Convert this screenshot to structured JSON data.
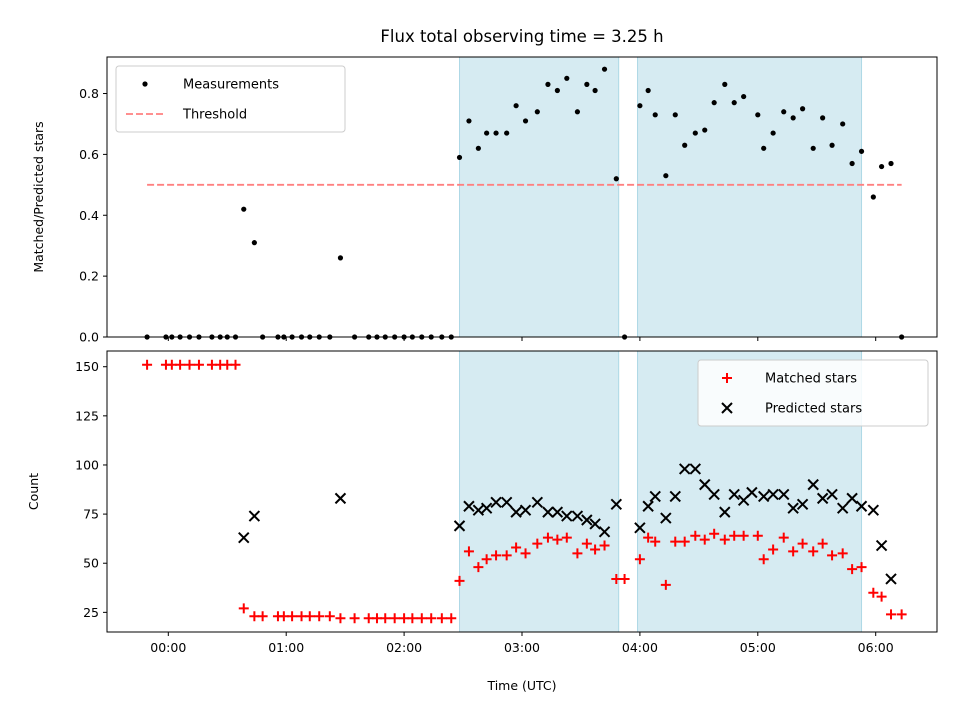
{
  "chart_data": {
    "type": "scatter",
    "title": "Flux total observing time = 3.25 h",
    "xlabel": "Time (UTC)",
    "x_units": "hours",
    "xlim": [
      -0.52,
      6.52
    ],
    "xticks": [
      {
        "value": 0,
        "label": "00:00"
      },
      {
        "value": 1,
        "label": "01:00"
      },
      {
        "value": 2,
        "label": "02:00"
      },
      {
        "value": 3,
        "label": "03:00"
      },
      {
        "value": 4,
        "label": "04:00"
      },
      {
        "value": 5,
        "label": "05:00"
      },
      {
        "value": 6,
        "label": "06:00"
      }
    ],
    "shaded_intervals": [
      {
        "start": 2.47,
        "end": 3.82
      },
      {
        "start": 3.98,
        "end": 5.88
      }
    ],
    "shade_color": "#add8e6",
    "panels": [
      {
        "id": "ratio",
        "ylabel": "Matched/Predicted stars",
        "ylim": [
          0,
          0.92
        ],
        "yticks": [
          {
            "value": 0,
            "label": "0.0"
          },
          {
            "value": 0.2,
            "label": "0.2"
          },
          {
            "value": 0.4,
            "label": "0.4"
          },
          {
            "value": 0.6,
            "label": "0.6"
          },
          {
            "value": 0.8,
            "label": "0.8"
          }
        ],
        "legend": {
          "location": "upper-left",
          "entries": [
            "Measurements",
            "Threshold"
          ]
        },
        "threshold": {
          "name": "Threshold",
          "y": 0.5,
          "x_start": -0.18,
          "x_end": 6.22,
          "color": "#ff8080"
        },
        "series": [
          {
            "name": "Measurements",
            "marker": "dot",
            "color": "#000000",
            "x": [
              -0.18,
              -0.02,
              0.03,
              0.1,
              0.18,
              0.26,
              0.37,
              0.44,
              0.5,
              0.57,
              0.64,
              0.73,
              0.8,
              0.93,
              0.98,
              1.05,
              1.13,
              1.2,
              1.28,
              1.37,
              1.46,
              1.58,
              1.7,
              1.77,
              1.84,
              1.92,
              2.0,
              2.07,
              2.15,
              2.23,
              2.32,
              2.4,
              2.47,
              2.55,
              2.63,
              2.7,
              2.78,
              2.87,
              2.95,
              3.03,
              3.13,
              3.22,
              3.3,
              3.38,
              3.47,
              3.55,
              3.62,
              3.7,
              3.8,
              3.87,
              4.0,
              4.07,
              4.13,
              4.22,
              4.3,
              4.38,
              4.47,
              4.55,
              4.63,
              4.72,
              4.8,
              4.88,
              5.0,
              5.05,
              5.13,
              5.22,
              5.3,
              5.38,
              5.47,
              5.55,
              5.63,
              5.72,
              5.8,
              5.88,
              5.98,
              6.05,
              6.13,
              6.22
            ],
            "y": [
              0.0,
              0.0,
              0.0,
              0.0,
              0.0,
              0.0,
              0.0,
              0.0,
              0.0,
              0.0,
              0.42,
              0.31,
              0.0,
              0.0,
              0.0,
              0.0,
              0.0,
              0.0,
              0.0,
              0.0,
              0.26,
              0.0,
              0.0,
              0.0,
              0.0,
              0.0,
              0.0,
              0.0,
              0.0,
              0.0,
              0.0,
              0.0,
              0.59,
              0.71,
              0.62,
              0.67,
              0.67,
              0.67,
              0.76,
              0.71,
              0.74,
              0.83,
              0.81,
              0.85,
              0.74,
              0.83,
              0.81,
              0.88,
              0.52,
              0.0,
              0.76,
              0.81,
              0.73,
              0.53,
              0.73,
              0.63,
              0.67,
              0.68,
              0.77,
              0.83,
              0.77,
              0.79,
              0.73,
              0.62,
              0.67,
              0.74,
              0.72,
              0.75,
              0.62,
              0.72,
              0.63,
              0.7,
              0.57,
              0.61,
              0.46,
              0.56,
              0.57,
              0.0
            ]
          }
        ]
      },
      {
        "id": "counts",
        "ylabel": "Count",
        "ylim": [
          15,
          158
        ],
        "yticks": [
          {
            "value": 25,
            "label": "25"
          },
          {
            "value": 50,
            "label": "50"
          },
          {
            "value": 75,
            "label": "75"
          },
          {
            "value": 100,
            "label": "100"
          },
          {
            "value": 125,
            "label": "125"
          },
          {
            "value": 150,
            "label": "150"
          }
        ],
        "legend": {
          "location": "upper-right",
          "entries": [
            "Matched stars",
            "Predicted stars"
          ]
        },
        "series": [
          {
            "name": "Matched stars",
            "marker": "plus",
            "color": "#ff0000",
            "x": [
              -0.18,
              -0.02,
              0.03,
              0.1,
              0.18,
              0.26,
              0.37,
              0.44,
              0.5,
              0.57,
              0.64,
              0.73,
              0.8,
              0.93,
              0.98,
              1.05,
              1.13,
              1.2,
              1.28,
              1.37,
              1.46,
              1.58,
              1.7,
              1.77,
              1.84,
              1.92,
              2.0,
              2.07,
              2.15,
              2.23,
              2.32,
              2.4,
              2.47,
              2.55,
              2.63,
              2.7,
              2.78,
              2.87,
              2.95,
              3.03,
              3.13,
              3.22,
              3.3,
              3.38,
              3.47,
              3.55,
              3.62,
              3.7,
              3.8,
              3.87,
              4.0,
              4.07,
              4.13,
              4.22,
              4.3,
              4.38,
              4.47,
              4.55,
              4.63,
              4.72,
              4.8,
              4.88,
              5.0,
              5.05,
              5.13,
              5.22,
              5.3,
              5.38,
              5.47,
              5.55,
              5.63,
              5.72,
              5.8,
              5.88,
              5.98,
              6.05,
              6.13,
              6.22
            ],
            "y": [
              151,
              151,
              151,
              151,
              151,
              151,
              151,
              151,
              151,
              151,
              27,
              23,
              23,
              23,
              23,
              23,
              23,
              23,
              23,
              23,
              22,
              22,
              22,
              22,
              22,
              22,
              22,
              22,
              22,
              22,
              22,
              22,
              41,
              56,
              48,
              52,
              54,
              54,
              58,
              55,
              60,
              63,
              62,
              63,
              55,
              60,
              57,
              59,
              42,
              42,
              52,
              63,
              61,
              39,
              61,
              61,
              64,
              62,
              65,
              62,
              64,
              64,
              64,
              52,
              57,
              63,
              56,
              60,
              56,
              60,
              54,
              55,
              47,
              48,
              35,
              33,
              24,
              24
            ]
          },
          {
            "name": "Predicted stars",
            "marker": "x",
            "color": "#000000",
            "x": [
              0.64,
              0.73,
              1.46,
              2.47,
              2.55,
              2.63,
              2.7,
              2.78,
              2.87,
              2.95,
              3.03,
              3.13,
              3.22,
              3.3,
              3.38,
              3.47,
              3.55,
              3.62,
              3.7,
              3.8,
              4.0,
              4.07,
              4.13,
              4.22,
              4.3,
              4.38,
              4.47,
              4.55,
              4.63,
              4.72,
              4.8,
              4.88,
              4.95,
              5.05,
              5.13,
              5.22,
              5.3,
              5.38,
              5.47,
              5.55,
              5.63,
              5.72,
              5.8,
              5.88,
              5.98,
              6.05,
              6.13
            ],
            "y": [
              63,
              74,
              83,
              69,
              79,
              77,
              78,
              81,
              81,
              76,
              77,
              81,
              76,
              76,
              74,
              74,
              72,
              70,
              66,
              80,
              68,
              79,
              84,
              73,
              84,
              98,
              98,
              90,
              85,
              76,
              85,
              82,
              86,
              84,
              85,
              85,
              78,
              80,
              90,
              83,
              85,
              78,
              83,
              79,
              77,
              59,
              42
            ]
          }
        ]
      }
    ]
  }
}
